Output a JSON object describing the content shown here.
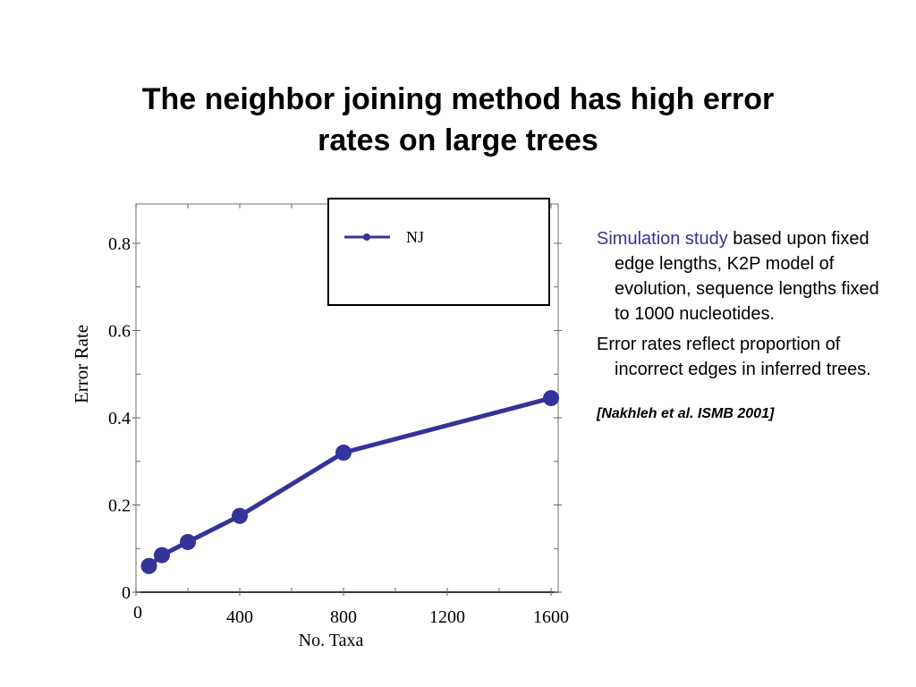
{
  "slide": {
    "title_line1": "The neighbor joining method has high error",
    "title_line2": "rates on large trees"
  },
  "side_panel": {
    "para1_highlight": "Simulation study",
    "para1_rest": " based upon fixed edge lengths, K2P model of evolution, sequence lengths fixed to 1000 nucleotides.",
    "para2": "Error rates reflect proportion of incorrect edges in inferred trees.",
    "citation": "[Nakhleh et al. ISMB 2001]",
    "highlight_color": "#333399"
  },
  "chart_data": {
    "type": "line",
    "xlabel": "No. Taxa",
    "ylabel": "Error Rate",
    "xlim": [
      0,
      1650
    ],
    "ylim": [
      0,
      0.9
    ],
    "x_ticks": [
      0,
      400,
      800,
      1200,
      1600
    ],
    "x_tick_labels": [
      "0",
      "400",
      "800",
      "1200",
      "1600"
    ],
    "y_ticks": [
      0,
      0.2,
      0.4,
      0.6,
      0.8
    ],
    "y_tick_labels": [
      "0",
      "0.2",
      "0.4",
      "0.6",
      "0.8"
    ],
    "legend_position": "top-right",
    "grid": false,
    "series": [
      {
        "name": "NJ",
        "color": "#333399",
        "x": [
          50,
          100,
          200,
          400,
          800,
          1600
        ],
        "y": [
          0.06,
          0.085,
          0.115,
          0.175,
          0.32,
          0.445
        ]
      }
    ]
  }
}
